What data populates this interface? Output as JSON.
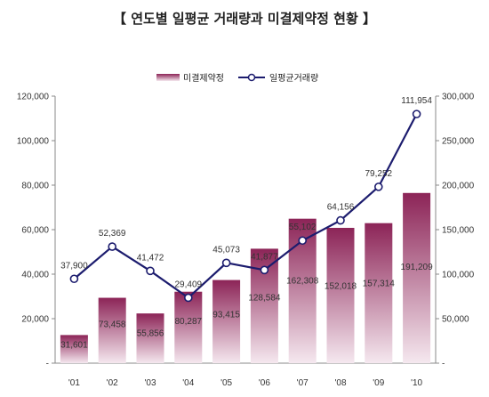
{
  "chart_data": {
    "type": "bar",
    "title": "【 연도별 일평균 거래량과 미결제약정 현황 】",
    "categories": [
      "'01",
      "'02",
      "'03",
      "'04",
      "'05",
      "'06",
      "'07",
      "'08",
      "'09",
      "'10"
    ],
    "series": [
      {
        "name": "미결제약정",
        "type": "bar",
        "axis": "right",
        "values": [
          31601,
          73458,
          55856,
          80287,
          93415,
          128584,
          162308,
          152018,
          157314,
          191209
        ],
        "labels": [
          "31,601",
          "73,458",
          "55,856",
          "80,287",
          "93,415",
          "128,584",
          "162,308",
          "152,018",
          "157,314",
          "191,209"
        ]
      },
      {
        "name": "일평균거래량",
        "type": "line",
        "axis": "left",
        "values": [
          37900,
          52369,
          41472,
          29409,
          45073,
          41877,
          55102,
          64156,
          79252,
          111954
        ],
        "labels": [
          "37,900",
          "52,369",
          "41,472",
          "29,409",
          "45,073",
          "41,877",
          "55,102",
          "64,156",
          "79,252",
          "111,954"
        ]
      }
    ],
    "y_left": {
      "lim": [
        0,
        120000
      ],
      "ticks": [
        "-",
        "20,000",
        "40,000",
        "60,000",
        "80,000",
        "100,000",
        "120,000"
      ]
    },
    "y_right": {
      "lim": [
        0,
        300000
      ],
      "ticks": [
        "-",
        "50,000",
        "100,000",
        "150,000",
        "200,000",
        "250,000",
        "300,000"
      ]
    },
    "grid": false,
    "legend": "top",
    "colors": {
      "bar_top": "#8c2457",
      "bar_bottom": "#f3e3ec",
      "line": "#1c1c6e",
      "marker_fill": "#ffffff"
    }
  }
}
